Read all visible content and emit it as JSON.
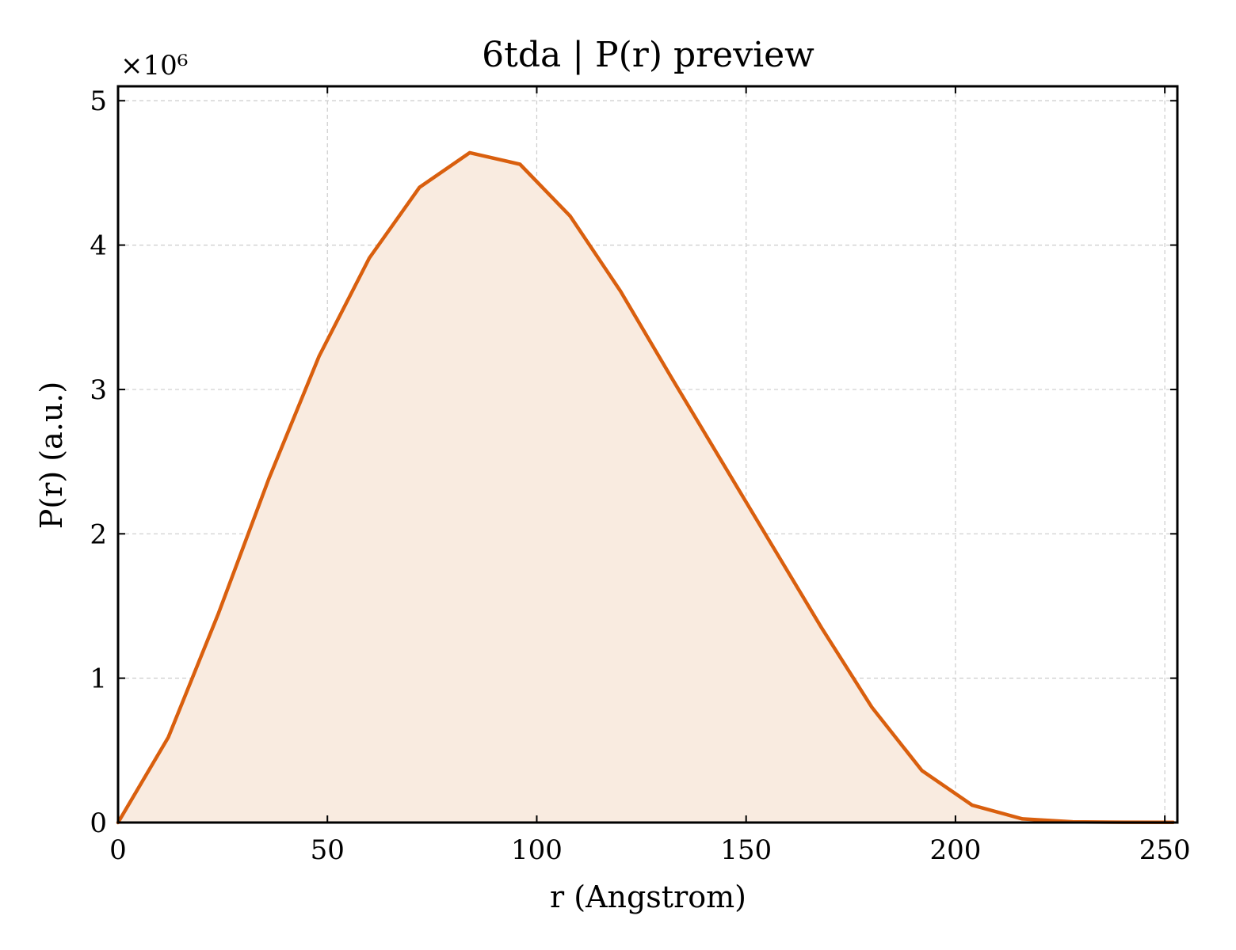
{
  "chart_data": {
    "type": "area",
    "title": "6tda | P(r) preview",
    "xlabel": "r (Angstrom)",
    "ylabel": "P(r) (a.u.)",
    "y_multiplier": "×10⁶",
    "xlim": [
      0,
      253
    ],
    "ylim": [
      0,
      5.1
    ],
    "xticks": [
      0,
      50,
      100,
      150,
      200,
      250
    ],
    "yticks": [
      0,
      1,
      2,
      3,
      4,
      5
    ],
    "grid": true,
    "colors": {
      "line": "#d95f0e",
      "fill": "#f9ebe0"
    },
    "series": [
      {
        "x": [
          0,
          12,
          24,
          36,
          48,
          60,
          72,
          84,
          96,
          108,
          120,
          132,
          144,
          156,
          168,
          180,
          192,
          204,
          216,
          228,
          240,
          252
        ],
        "y": [
          0,
          0.59,
          1.45,
          2.38,
          3.23,
          3.91,
          4.4,
          4.64,
          4.56,
          4.2,
          3.68,
          3.09,
          2.51,
          1.93,
          1.35,
          0.8,
          0.36,
          0.12,
          0.025,
          0.005,
          0.002,
          0.001
        ]
      }
    ]
  }
}
